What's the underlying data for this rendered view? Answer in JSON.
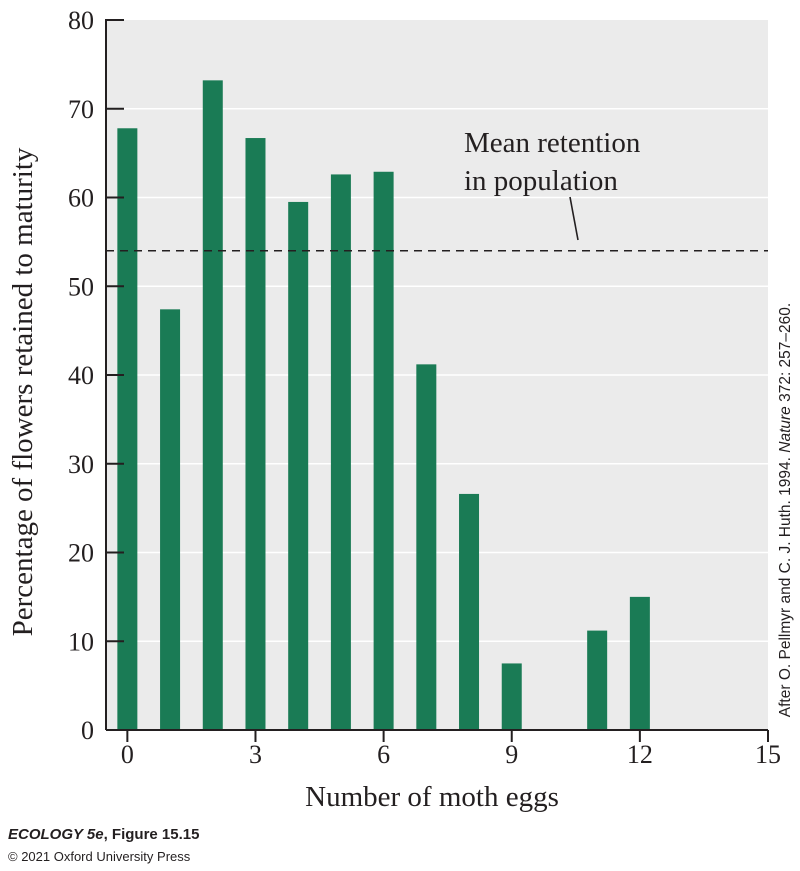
{
  "chart_data": {
    "type": "bar",
    "x": [
      0,
      1,
      2,
      3,
      4,
      5,
      6,
      7,
      8,
      9,
      11,
      12
    ],
    "values": [
      67.8,
      47.4,
      73.2,
      66.7,
      59.5,
      62.6,
      62.9,
      41.2,
      26.6,
      7.5,
      11.2,
      15.0
    ],
    "xlabel": "Number of moth eggs",
    "ylabel": "Percentage of flowers retained to maturity",
    "xlim": [
      -0.5,
      15
    ],
    "ylim": [
      0,
      80
    ],
    "xticks": [
      0,
      3,
      6,
      9,
      12,
      15
    ],
    "yticks": [
      0,
      10,
      20,
      30,
      40,
      50,
      60,
      70,
      80
    ],
    "grid": true,
    "colors": {
      "bar": "#1a7b55",
      "plot_bg": "#ebebeb",
      "grid": "#ffffff",
      "text": "#231f20"
    },
    "reference_line": {
      "y": 54,
      "style": "dashed"
    },
    "annotation": {
      "line1": "Mean retention",
      "line2": "in population"
    },
    "source_note": {
      "prefix": "After O. Pellmyr and C. J. Huth. 1994. ",
      "journal": "Nature",
      "suffix": " 372: 257–260."
    }
  },
  "credit": {
    "book": "ECOLOGY 5e",
    "figure": ", Figure 15.15",
    "copyright": "© 2021 Oxford University Press"
  }
}
